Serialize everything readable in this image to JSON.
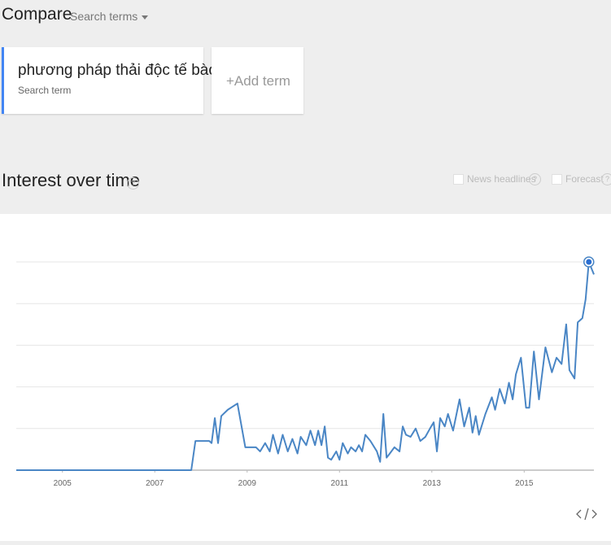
{
  "header": {
    "title": "Compare",
    "dropdown": "Search terms"
  },
  "terms": [
    {
      "label": "phương pháp thải độc tế bào",
      "sublabel": "Search term"
    }
  ],
  "add_term": "+Add term",
  "section": {
    "title": "Interest over time",
    "help": "?",
    "options": [
      "News headlines",
      "Forecast"
    ]
  },
  "chart_data": {
    "type": "line",
    "x": [
      2004.0,
      2007.79,
      2007.88,
      2007.95,
      2008.18,
      2008.23,
      2008.3,
      2008.37,
      2008.44,
      2008.58,
      2008.79,
      2008.96,
      2009.05,
      2009.19,
      2009.28,
      2009.39,
      2009.49,
      2009.56,
      2009.67,
      2009.77,
      2009.88,
      2009.98,
      2010.09,
      2010.16,
      2010.28,
      2010.37,
      2010.47,
      2010.54,
      2010.61,
      2010.68,
      2010.75,
      2010.82,
      2010.93,
      2011.0,
      2011.07,
      2011.18,
      2011.25,
      2011.35,
      2011.42,
      2011.49,
      2011.56,
      2011.67,
      2011.81,
      2011.88,
      2011.95,
      2012.02,
      2012.09,
      2012.19,
      2012.3,
      2012.37,
      2012.44,
      2012.54,
      2012.65,
      2012.75,
      2012.86,
      2012.96,
      2013.04,
      2013.11,
      2013.18,
      2013.28,
      2013.35,
      2013.46,
      2013.6,
      2013.7,
      2013.81,
      2013.88,
      2013.95,
      2014.02,
      2014.16,
      2014.3,
      2014.37,
      2014.47,
      2014.58,
      2014.67,
      2014.75,
      2014.82,
      2014.93,
      2015.04,
      2015.11,
      2015.21,
      2015.32,
      2015.46,
      2015.6,
      2015.7,
      2015.81,
      2015.91,
      2015.98,
      2016.09,
      2016.16,
      2016.26,
      2016.33,
      2016.4,
      2016.51
    ],
    "series": [
      {
        "color": "#4a86c5",
        "values": [
          0,
          0,
          14,
          14,
          14,
          13,
          25,
          13,
          26,
          29,
          32,
          11,
          11,
          11,
          9,
          13,
          9,
          17,
          8,
          17,
          9,
          15,
          8,
          16,
          12,
          19,
          12,
          19,
          12,
          21,
          6,
          5,
          9,
          5,
          13,
          8,
          11,
          9,
          12,
          9,
          17,
          14,
          9,
          4,
          27,
          6,
          8,
          11,
          9,
          21,
          17,
          16,
          20,
          14,
          16,
          20,
          23,
          9,
          25,
          21,
          27,
          19,
          34,
          21,
          30,
          18,
          26,
          17,
          27,
          35,
          29,
          39,
          32,
          42,
          34,
          46,
          54,
          30,
          30,
          57,
          34,
          59,
          47,
          54,
          51,
          70,
          48,
          44,
          71,
          73,
          82,
          100,
          94
        ]
      }
    ],
    "xlim": [
      2004.0,
      2016.51
    ],
    "xticks": [
      2005,
      2007,
      2009,
      2011,
      2013,
      2015
    ],
    "ylim": [
      0,
      100
    ],
    "yticks": [
      0,
      20,
      40,
      60,
      80,
      100
    ],
    "grid": true,
    "highlight_index": 91
  }
}
